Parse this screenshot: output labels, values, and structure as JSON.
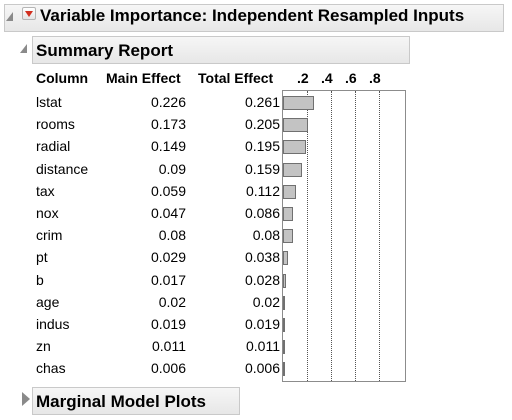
{
  "header": {
    "title": "Variable Importance: Independent Resampled Inputs"
  },
  "summary": {
    "title": "Summary Report",
    "columns": {
      "column": "Column",
      "main": "Main Effect",
      "total": "Total Effect"
    },
    "ticks": [
      ".2",
      ".4",
      ".6",
      ".8"
    ],
    "rows": [
      {
        "name": "lstat",
        "main": "0.226",
        "total": "0.261"
      },
      {
        "name": "rooms",
        "main": "0.173",
        "total": "0.205"
      },
      {
        "name": "radial",
        "main": "0.149",
        "total": "0.195"
      },
      {
        "name": "distance",
        "main": "0.09",
        "total": "0.159"
      },
      {
        "name": "tax",
        "main": "0.059",
        "total": "0.112"
      },
      {
        "name": "nox",
        "main": "0.047",
        "total": "0.086"
      },
      {
        "name": "crim",
        "main": "0.08",
        "total": "0.08"
      },
      {
        "name": "pt",
        "main": "0.029",
        "total": "0.038"
      },
      {
        "name": "b",
        "main": "0.017",
        "total": "0.028"
      },
      {
        "name": "age",
        "main": "0.02",
        "total": "0.02"
      },
      {
        "name": "indus",
        "main": "0.019",
        "total": "0.019"
      },
      {
        "name": "zn",
        "main": "0.011",
        "total": "0.011"
      },
      {
        "name": "chas",
        "main": "0.006",
        "total": "0.006"
      }
    ]
  },
  "marginal": {
    "title": "Marginal Model Plots"
  }
}
